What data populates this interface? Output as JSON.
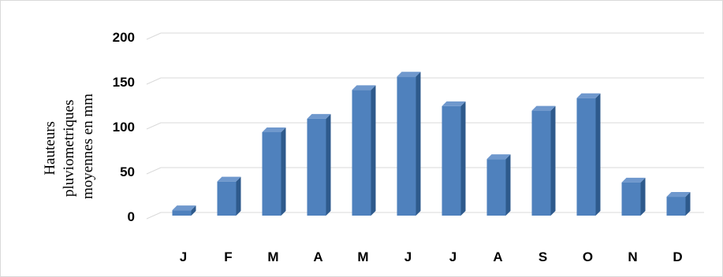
{
  "chart_data": {
    "type": "bar",
    "title": "",
    "xlabel": "",
    "ylabel_lines": [
      "Hauteurs",
      "pluviometriques",
      "moyennes en mm"
    ],
    "categories": [
      "J",
      "F",
      "M",
      "A",
      "M",
      "J",
      "J",
      "A",
      "S",
      "O",
      "N",
      "D"
    ],
    "values": [
      6,
      38,
      93,
      108,
      140,
      155,
      122,
      63,
      117,
      131,
      37,
      21
    ],
    "ylim": [
      0,
      200
    ],
    "yticks": [
      "0",
      "50",
      "100",
      "150",
      "200"
    ],
    "grid": true,
    "bar_color": "#4f81bd",
    "bar_side_color": "#2e5a8c",
    "bar_top_color": "#6f98cd"
  }
}
